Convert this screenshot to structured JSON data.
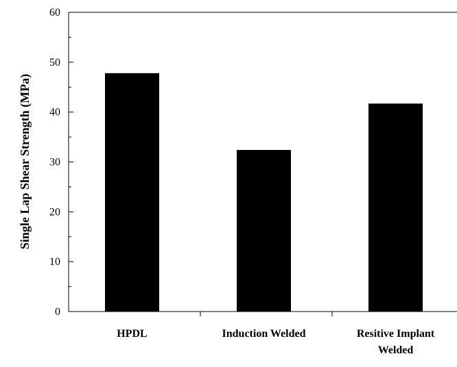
{
  "chart_data": {
    "type": "bar",
    "y_label": "Single Lap Shear Strength (MPa)",
    "categories": [
      "HPDL",
      "Induction Welded",
      "Resitive Implant Welded"
    ],
    "values": [
      47.8,
      32.4,
      41.7
    ],
    "color": "#000000",
    "ylim": [
      0,
      60
    ],
    "yticks": [
      0,
      10,
      20,
      30,
      40,
      50,
      60
    ],
    "minor_yticks": [
      5,
      15,
      25,
      35,
      45,
      55
    ],
    "grid": false
  }
}
